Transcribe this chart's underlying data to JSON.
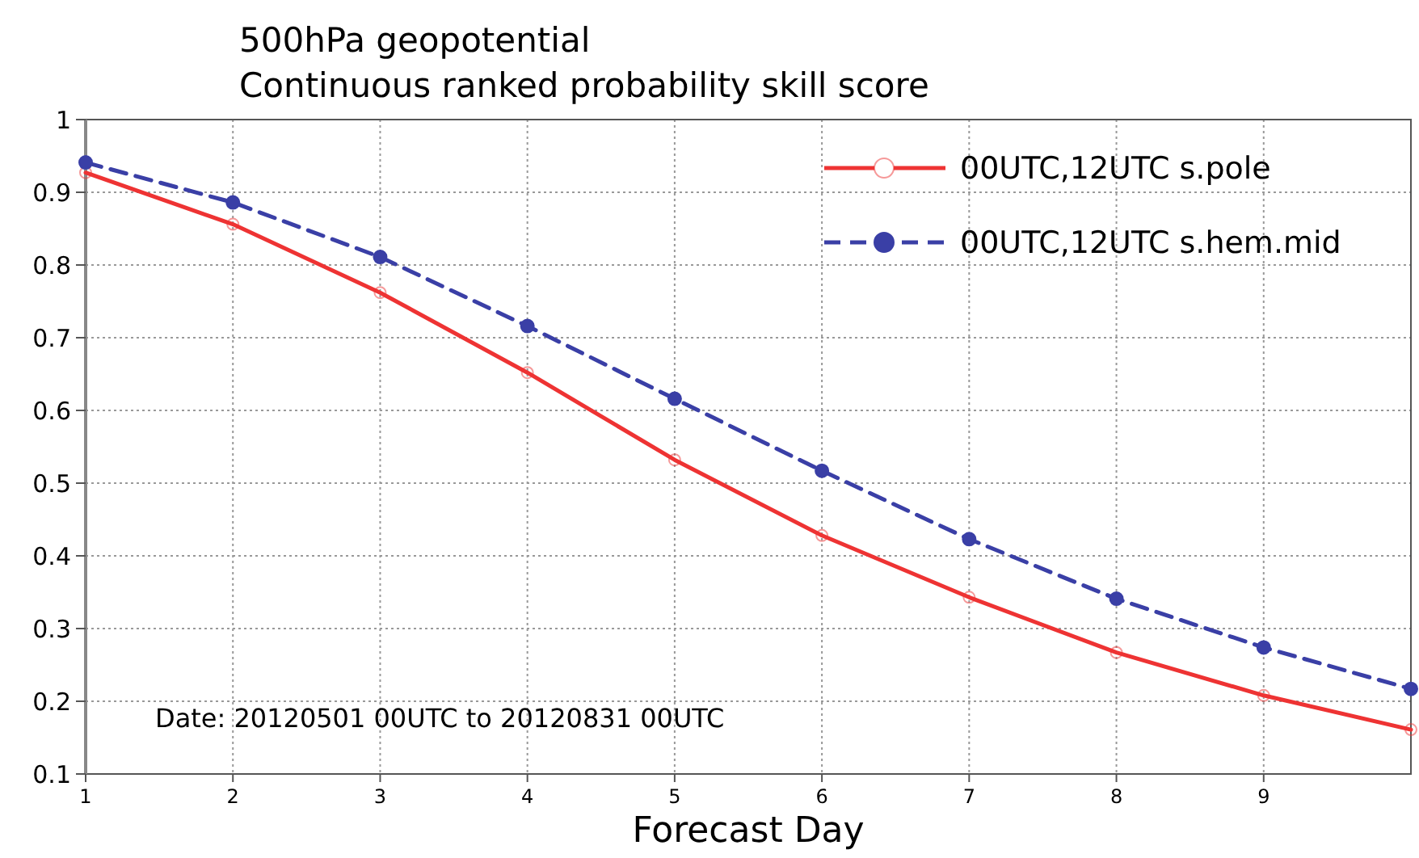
{
  "chart_data": {
    "type": "line",
    "title": "500hPa geopotential",
    "subtitle": "Continuous ranked probability skill score",
    "xlabel": "Forecast Day",
    "x": [
      1,
      2,
      3,
      4,
      5,
      6,
      7,
      8,
      9,
      10
    ],
    "series": [
      {
        "name": "00UTC,12UTC s.pole",
        "color": "#ee3333",
        "line_style": "solid",
        "marker": "circle",
        "values": [
          0.927,
          0.856,
          0.762,
          0.652,
          0.532,
          0.428,
          0.343,
          0.267,
          0.208,
          0.161
        ]
      },
      {
        "name": "00UTC,12UTC s.hem.mid",
        "color": "#3a3fa6",
        "line_style": "dashed",
        "marker": "circle",
        "values": [
          0.941,
          0.886,
          0.811,
          0.716,
          0.616,
          0.517,
          0.423,
          0.341,
          0.274,
          0.217
        ]
      }
    ],
    "xlim": [
      1,
      10
    ],
    "xticks": [
      1,
      2,
      3,
      4,
      5,
      6,
      7,
      8,
      9
    ],
    "ylim": [
      0.1,
      1
    ],
    "yticks": [
      0.1,
      0.2,
      0.3,
      0.4,
      0.5,
      0.6,
      0.7,
      0.8,
      0.9,
      1
    ],
    "grid": true,
    "legend": "top right",
    "annotations": [
      "Date: 20120501 00UTC to 20120831 00UTC"
    ]
  }
}
